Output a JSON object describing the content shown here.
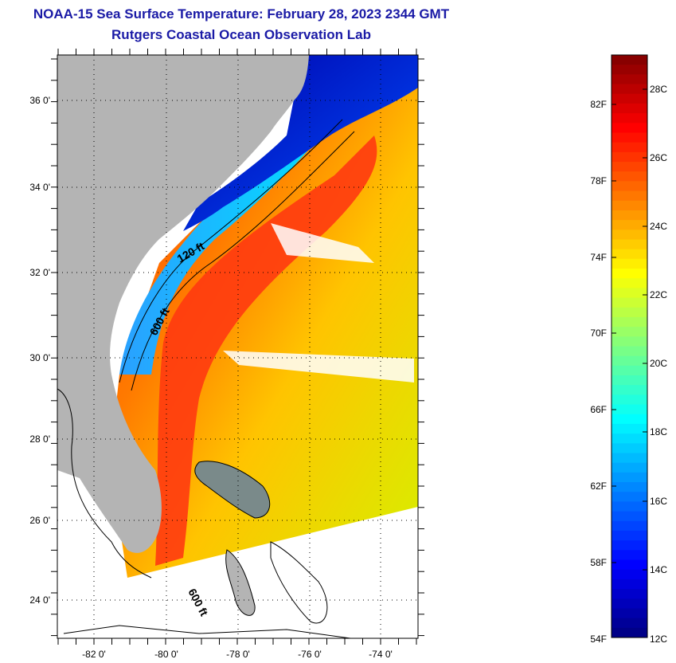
{
  "title": "NOAA-15 Sea Surface Temperature:  February 28, 2023 2344 GMT",
  "subtitle": "Rutgers Coastal Ocean Observation Lab",
  "map": {
    "lat_labels": [
      "36 0'",
      "34 0'",
      "32 0'",
      "30 0'",
      "28 0'",
      "26 0'",
      "24 0'"
    ],
    "lon_labels": [
      "-82 0'",
      "-80 0'",
      "-78 0'",
      "-76 0'",
      "-74 0'"
    ],
    "lat_range": [
      23,
      37
    ],
    "lon_range": [
      -83,
      -73
    ],
    "contour_labels": [
      "120 ft",
      "600 ft",
      "600 ft"
    ],
    "land_color": "#b4b4b4",
    "nodata_color": "#ffffff"
  },
  "colorbar": {
    "f_labels": [
      "82F",
      "78F",
      "74F",
      "70F",
      "66F",
      "62F",
      "58F",
      "54F"
    ],
    "c_labels": [
      "28C",
      "26C",
      "24C",
      "22C",
      "20C",
      "18C",
      "16C",
      "14C",
      "12C"
    ],
    "range_c": [
      12,
      29
    ],
    "colormap": "jet"
  }
}
